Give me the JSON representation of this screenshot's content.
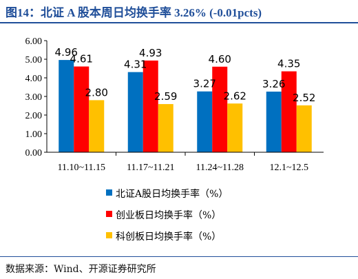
{
  "header": {
    "title": "图14：北证 A 股本周日均换手率 3.26% (-0.01pcts)"
  },
  "footer": {
    "source": "数据来源：Wind、开源证券研究所"
  },
  "chart_data": {
    "type": "bar",
    "title": "",
    "xlabel": "",
    "ylabel": "",
    "categories": [
      "11.10~11.15",
      "11.17~11.21",
      "11.24~11.28",
      "12.1~12.5"
    ],
    "series": [
      {
        "name": "北证A股日均换手率（%）",
        "values": [
          4.96,
          4.31,
          3.27,
          3.26
        ],
        "color": "#0070c0",
        "labels": [
          "4.96",
          "4.31",
          "3.27",
          "3.26"
        ]
      },
      {
        "name": "创业板日均换手率（%）",
        "values": [
          4.61,
          4.93,
          4.6,
          4.35
        ],
        "color": "#ff0000",
        "labels": [
          "4.61",
          "4.93",
          "4.60",
          "4.35"
        ]
      },
      {
        "name": "科创板日均换手率（%）",
        "values": [
          2.8,
          2.59,
          2.62,
          2.52
        ],
        "color": "#ffc000",
        "labels": [
          "2.80",
          "2.59",
          "2.62",
          "2.52"
        ]
      }
    ],
    "ylim": [
      0,
      6
    ],
    "yticks": [
      "0.00",
      "1.00",
      "2.00",
      "3.00",
      "4.00",
      "5.00",
      "6.00"
    ],
    "grid": false,
    "legend_position": "bottom"
  }
}
